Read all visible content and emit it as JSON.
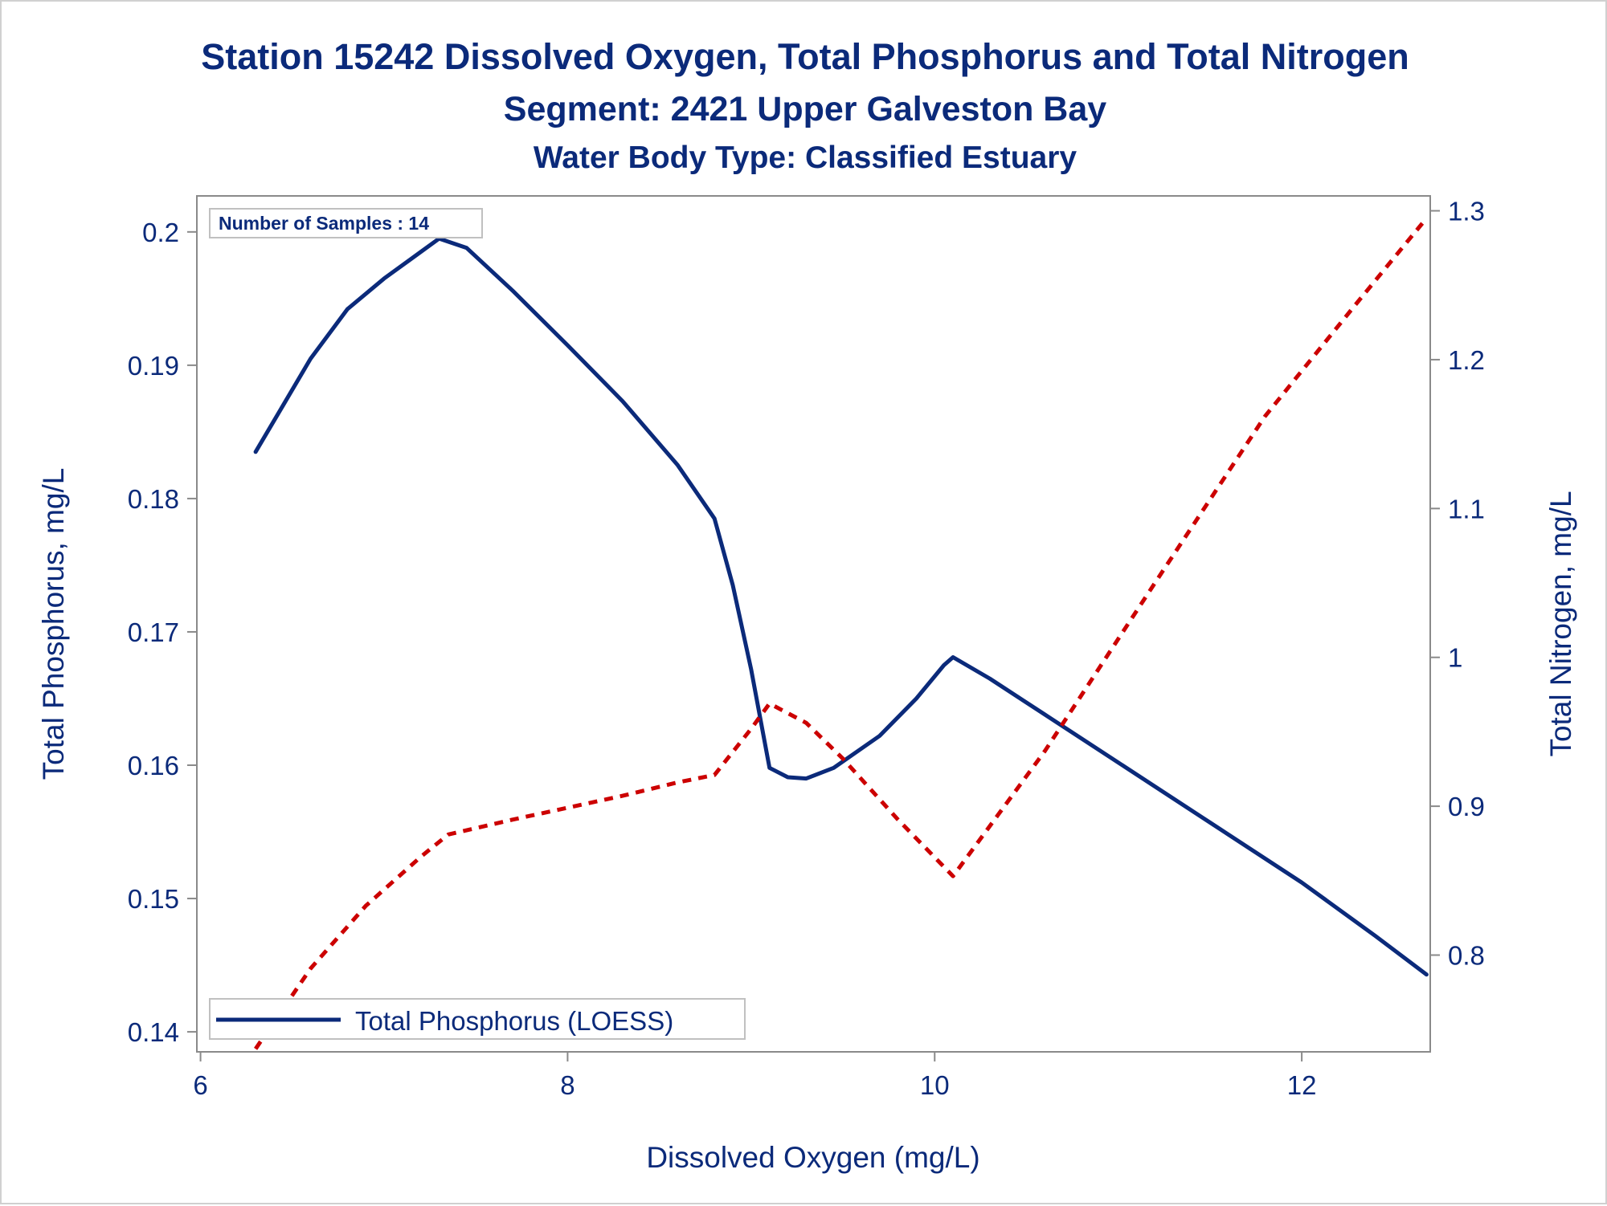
{
  "chart_data": {
    "type": "line",
    "title": "Station 15242  Dissolved Oxygen, Total Phosphorus and Total Nitrogen",
    "subtitle": "Segment: 2421  Upper Galveston Bay",
    "subtitle2": "Water Body Type: Classified Estuary",
    "xlabel": "Dissolved Oxygen (mg/L)",
    "ylabel": "Total Phosphorus, mg/L",
    "y2label": "Total Nitrogen, mg/L",
    "xlim": [
      5.98,
      12.7
    ],
    "ylim": [
      0.1385,
      0.2027
    ],
    "y2lim": [
      0.735,
      1.31
    ],
    "xticks": [
      6,
      8,
      10,
      12
    ],
    "xtick_labels": [
      "6",
      "8",
      "10",
      "12"
    ],
    "yticks": [
      0.14,
      0.15,
      0.16,
      0.17,
      0.18,
      0.19,
      0.2
    ],
    "ytick_labels": [
      "0.14",
      "0.15",
      "0.16",
      "0.17",
      "0.18",
      "0.19",
      "0.2"
    ],
    "y2ticks": [
      0.8,
      0.9,
      1.0,
      1.1,
      1.2,
      1.3
    ],
    "y2tick_labels": [
      "0.8",
      "0.9",
      "1",
      "1.1",
      "1.2",
      "1.3"
    ],
    "grid": false,
    "legend_position": "bottom-left, inside",
    "inset_text": "Number of Samples : 14",
    "series": [
      {
        "name": "Total Phosphorus (LOESS)",
        "axis": "left",
        "color": "#0b2a7a",
        "style": "solid",
        "x": [
          6.3,
          6.45,
          6.6,
          6.8,
          7.0,
          7.2,
          7.3,
          7.45,
          7.7,
          8.0,
          8.3,
          8.6,
          8.8,
          8.9,
          9.0,
          9.1,
          9.2,
          9.3,
          9.45,
          9.7,
          9.9,
          10.05,
          10.1,
          10.3,
          10.6,
          11.0,
          11.5,
          12.0,
          12.4,
          12.68
        ],
        "values": [
          0.1835,
          0.187,
          0.1905,
          0.1942,
          0.1965,
          0.1985,
          0.1995,
          0.1988,
          0.1956,
          0.1915,
          0.1873,
          0.1825,
          0.1785,
          0.1735,
          0.1672,
          0.1598,
          0.1591,
          0.159,
          0.1598,
          0.1622,
          0.165,
          0.1675,
          0.1681,
          0.1665,
          0.1638,
          0.1602,
          0.1557,
          0.1512,
          0.1472,
          0.1443
        ]
      },
      {
        "name": "",
        "axis": "right",
        "color": "#cc0000",
        "style": "dashed",
        "x": [
          6.3,
          6.6,
          6.9,
          7.2,
          7.35,
          7.7,
          8.0,
          8.3,
          8.6,
          8.8,
          9.0,
          9.1,
          9.3,
          9.5,
          9.8,
          10.1,
          10.6,
          11.2,
          11.8,
          12.3,
          12.68
        ],
        "values": [
          0.737,
          0.791,
          0.833,
          0.866,
          0.881,
          0.891,
          0.899,
          0.907,
          0.916,
          0.921,
          0.952,
          0.969,
          0.956,
          0.932,
          0.891,
          0.853,
          0.937,
          1.05,
          1.162,
          1.238,
          1.295
        ]
      }
    ]
  }
}
